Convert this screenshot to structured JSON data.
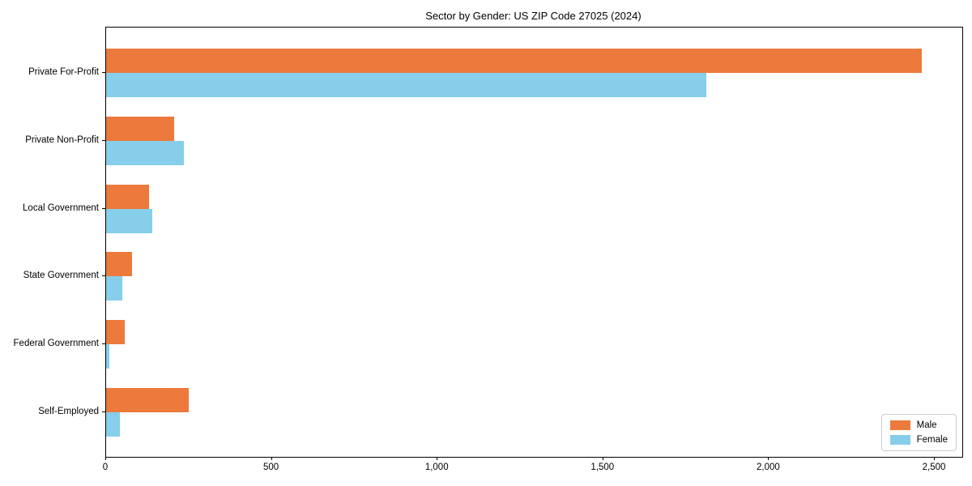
{
  "page": {
    "background_color": "#ffffff"
  },
  "chart_data": {
    "type": "bar",
    "orientation": "horizontal",
    "title": "Sector by Gender: US ZIP Code 27025 (2024)",
    "categories": [
      "Private For-Profit",
      "Private Non-Profit",
      "Local Government",
      "State Government",
      "Federal Government",
      "Self-Employed"
    ],
    "series": [
      {
        "name": "Male",
        "color": "#ec7a3c",
        "values": [
          2460,
          205,
          130,
          78,
          55,
          250
        ]
      },
      {
        "name": "Female",
        "color": "#87ceeb",
        "values": [
          1810,
          235,
          140,
          50,
          10,
          42
        ]
      }
    ],
    "xlabel": "",
    "ylabel": "",
    "xlim": [
      0,
      2583
    ],
    "x_ticks": [
      0,
      500,
      1000,
      1500,
      2000,
      2500
    ],
    "x_tick_labels": [
      "0",
      "500",
      "1,000",
      "1,500",
      "2,000",
      "2,500"
    ],
    "grid": false,
    "legend": {
      "position": "lower-right",
      "entries": [
        "Male",
        "Female"
      ]
    },
    "colors": {
      "axis": "#000000",
      "text": "#000000",
      "legend_border": "#cccccc",
      "background": "#ffffff"
    }
  }
}
